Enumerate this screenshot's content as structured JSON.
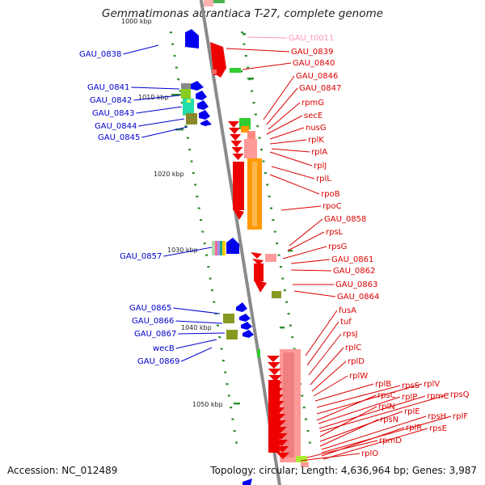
{
  "title": "Gemmatimonas aurantiaca T-27, complete genome",
  "footer": {
    "accession": "Accession: NC_012489",
    "summary": "Topology: circular; Length: 4,636,964 bp; Genes: 3,987"
  },
  "colors": {
    "minus_strand_label": "#0000cc",
    "plus_strand_label": "#dd0000",
    "trna_label": "#ff99bb",
    "backbone": "#8a8a8a",
    "gc_ticks": "#2f8f2f"
  },
  "scale": {
    "labels": [
      "1000 kbp",
      "1010 kbp",
      "1020 kbp",
      "1030 kbp",
      "1040 kbp",
      "1050 kbp"
    ]
  },
  "genes_left": [
    {
      "name": "GAU_0838"
    },
    {
      "name": "GAU_0841"
    },
    {
      "name": "GAU_0842"
    },
    {
      "name": "GAU_0843"
    },
    {
      "name": "GAU_0844"
    },
    {
      "name": "GAU_0845"
    },
    {
      "name": "GAU_0857"
    },
    {
      "name": "GAU_0865"
    },
    {
      "name": "GAU_0866"
    },
    {
      "name": "GAU_0867"
    },
    {
      "name": "wecB"
    },
    {
      "name": "GAU_0869"
    }
  ],
  "genes_right": [
    {
      "name": "GAU_t0011",
      "kind": "trna"
    },
    {
      "name": "GAU_0839"
    },
    {
      "name": "GAU_0840"
    },
    {
      "name": "GAU_0846"
    },
    {
      "name": "GAU_0847"
    },
    {
      "name": "rpmG"
    },
    {
      "name": "secE"
    },
    {
      "name": "nusG"
    },
    {
      "name": "rplK"
    },
    {
      "name": "rplA"
    },
    {
      "name": "rplJ"
    },
    {
      "name": "rplL"
    },
    {
      "name": "rpoB"
    },
    {
      "name": "rpoC"
    },
    {
      "name": "GAU_0858"
    },
    {
      "name": "rpsL"
    },
    {
      "name": "rpsG"
    },
    {
      "name": "GAU_0861"
    },
    {
      "name": "GAU_0862"
    },
    {
      "name": "GAU_0863"
    },
    {
      "name": "GAU_0864"
    },
    {
      "name": "fusA"
    },
    {
      "name": "tuf"
    },
    {
      "name": "rpsJ"
    },
    {
      "name": "rplC"
    },
    {
      "name": "rplD"
    },
    {
      "name": "rplW"
    },
    {
      "name": "rplB"
    },
    {
      "name": "rpsS"
    },
    {
      "name": "rplV"
    },
    {
      "name": "rpsC"
    },
    {
      "name": "rplP"
    },
    {
      "name": "rpmC"
    },
    {
      "name": "rpsQ"
    },
    {
      "name": "rplN"
    },
    {
      "name": "rplE"
    },
    {
      "name": "rpsN"
    },
    {
      "name": "rpsH"
    },
    {
      "name": "rplF"
    },
    {
      "name": "rplR"
    },
    {
      "name": "rpsE"
    },
    {
      "name": "rpmD"
    },
    {
      "name": "rplO"
    }
  ]
}
